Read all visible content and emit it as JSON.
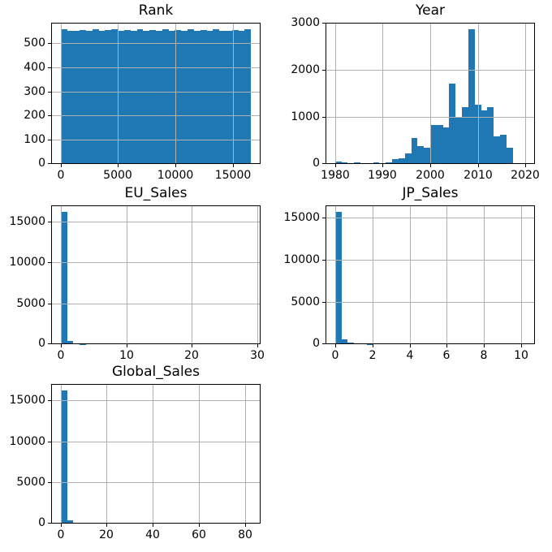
{
  "figure": {
    "background": "#ffffff",
    "bar_color": "#1f77b4",
    "grid_color": "#b0b0b0",
    "spine_color": "#000000",
    "tick_color": "#000000",
    "text_color": "#000000"
  },
  "chart_data": [
    {
      "type": "bar",
      "title": "Rank",
      "grid": true,
      "bins_start": 1,
      "bin_width": 553.3,
      "xlim": [
        -830,
        17430
      ],
      "ylim": [
        0,
        584
      ],
      "xticks": [
        0,
        5000,
        10000,
        15000
      ],
      "yticks": [
        0,
        100,
        200,
        300,
        400,
        500
      ],
      "values": [
        556,
        551,
        549,
        555,
        550,
        556,
        549,
        554,
        556,
        550,
        555,
        549,
        556,
        551,
        554,
        549,
        556,
        550,
        555,
        551,
        556,
        549,
        554,
        550,
        556,
        551,
        549,
        555,
        551,
        557
      ]
    },
    {
      "type": "bar",
      "title": "Year",
      "grid": true,
      "bins_start": 1980,
      "bin_width": 1.33333,
      "xlim": [
        1978,
        2022
      ],
      "ylim": [
        0,
        3002
      ],
      "xticks": [
        1980,
        1990,
        2000,
        2010,
        2020
      ],
      "yticks": [
        0,
        1000,
        2000,
        3000
      ],
      "values": [
        55,
        36,
        17,
        28,
        21,
        16,
        32,
        16,
        41,
        103,
        121,
        219,
        552,
        379,
        338,
        831,
        829,
        775,
        1704,
        1008,
        1202,
        2859,
        1259,
        1139,
        1203,
        582,
        614,
        347,
        0,
        1
      ]
    },
    {
      "type": "bar",
      "title": "EU_Sales",
      "grid": true,
      "bins_start": 0,
      "bin_width": 0.96733,
      "xlim": [
        -1.451,
        30.471
      ],
      "ylim": [
        0,
        16933
      ],
      "xticks": [
        0,
        10,
        20,
        30
      ],
      "yticks": [
        0,
        5000,
        10000,
        15000
      ],
      "values": [
        16127,
        400,
        110,
        40,
        15,
        6,
        3,
        2,
        1,
        1,
        0,
        0,
        1,
        0,
        0,
        0,
        0,
        0,
        0,
        0,
        0,
        0,
        0,
        0,
        0,
        0,
        0,
        0,
        0,
        1
      ]
    },
    {
      "type": "bar",
      "title": "JP_Sales",
      "grid": true,
      "bins_start": 0,
      "bin_width": 0.34067,
      "xlim": [
        -0.511,
        10.731
      ],
      "ylim": [
        0,
        16440
      ],
      "xticks": [
        0,
        2,
        4,
        6,
        8,
        10
      ],
      "yticks": [
        0,
        5000,
        10000,
        15000
      ],
      "values": [
        15655,
        550,
        240,
        130,
        70,
        35,
        18,
        9,
        5,
        3,
        2,
        1,
        1,
        0,
        0,
        0,
        1,
        0,
        0,
        0,
        0,
        0,
        0,
        0,
        0,
        0,
        0,
        0,
        0,
        1
      ]
    },
    {
      "type": "bar",
      "title": "Global_Sales",
      "grid": true,
      "bins_start": 0.01,
      "bin_width": 2.75767,
      "xlim": [
        -4.126,
        86.876
      ],
      "ylim": [
        0,
        17023
      ],
      "xticks": [
        0,
        20,
        40,
        60,
        80
      ],
      "yticks": [
        0,
        5000,
        10000,
        15000
      ],
      "values": [
        16212,
        400,
        120,
        30,
        10,
        4,
        2,
        1,
        0,
        0,
        0,
        0,
        0,
        0,
        0,
        0,
        0,
        0,
        0,
        0,
        0,
        0,
        0,
        0,
        0,
        0,
        0,
        0,
        0,
        1
      ]
    }
  ]
}
